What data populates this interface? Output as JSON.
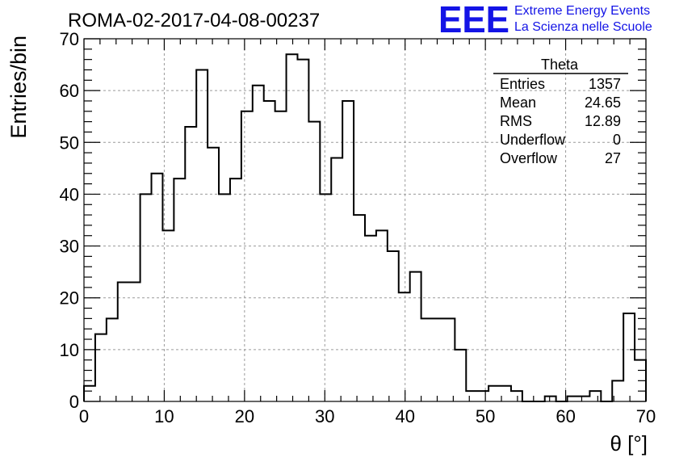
{
  "chart_data": {
    "type": "bar",
    "title": "ROMA-02-2017-04-08-00237",
    "xlabel": "θ [°]",
    "ylabel": "Entries/bin",
    "xlim": [
      0,
      70
    ],
    "ylim": [
      0,
      70
    ],
    "grid": true,
    "bin_width": 1.4,
    "x_ticks": [
      "0",
      "10",
      "20",
      "30",
      "40",
      "50",
      "60",
      "70"
    ],
    "y_ticks": [
      "0",
      "10",
      "20",
      "30",
      "40",
      "50",
      "60",
      "70"
    ],
    "values": [
      3,
      13,
      16,
      23,
      23,
      40,
      44,
      33,
      43,
      53,
      64,
      49,
      40,
      43,
      56,
      61,
      58,
      56,
      67,
      66,
      54,
      40,
      47,
      58,
      36,
      32,
      33,
      29,
      21,
      25,
      16,
      16,
      16,
      10,
      2,
      2,
      3,
      3,
      2,
      0,
      0,
      1,
      0,
      1,
      1,
      2,
      0,
      4,
      17,
      8
    ],
    "stats": {
      "title": "Theta",
      "rows": [
        {
          "label": "Entries",
          "value": "1357"
        },
        {
          "label": "Mean",
          "value": "24.65"
        },
        {
          "label": "RMS",
          "value": "12.89"
        },
        {
          "label": "Underflow",
          "value": "0"
        },
        {
          "label": "Overflow",
          "value": "27"
        }
      ]
    }
  },
  "logo": {
    "text": "EEE",
    "line1": "Extreme Energy Events",
    "line2": "La Scienza nelle Scuole",
    "color": "#1414e6"
  }
}
